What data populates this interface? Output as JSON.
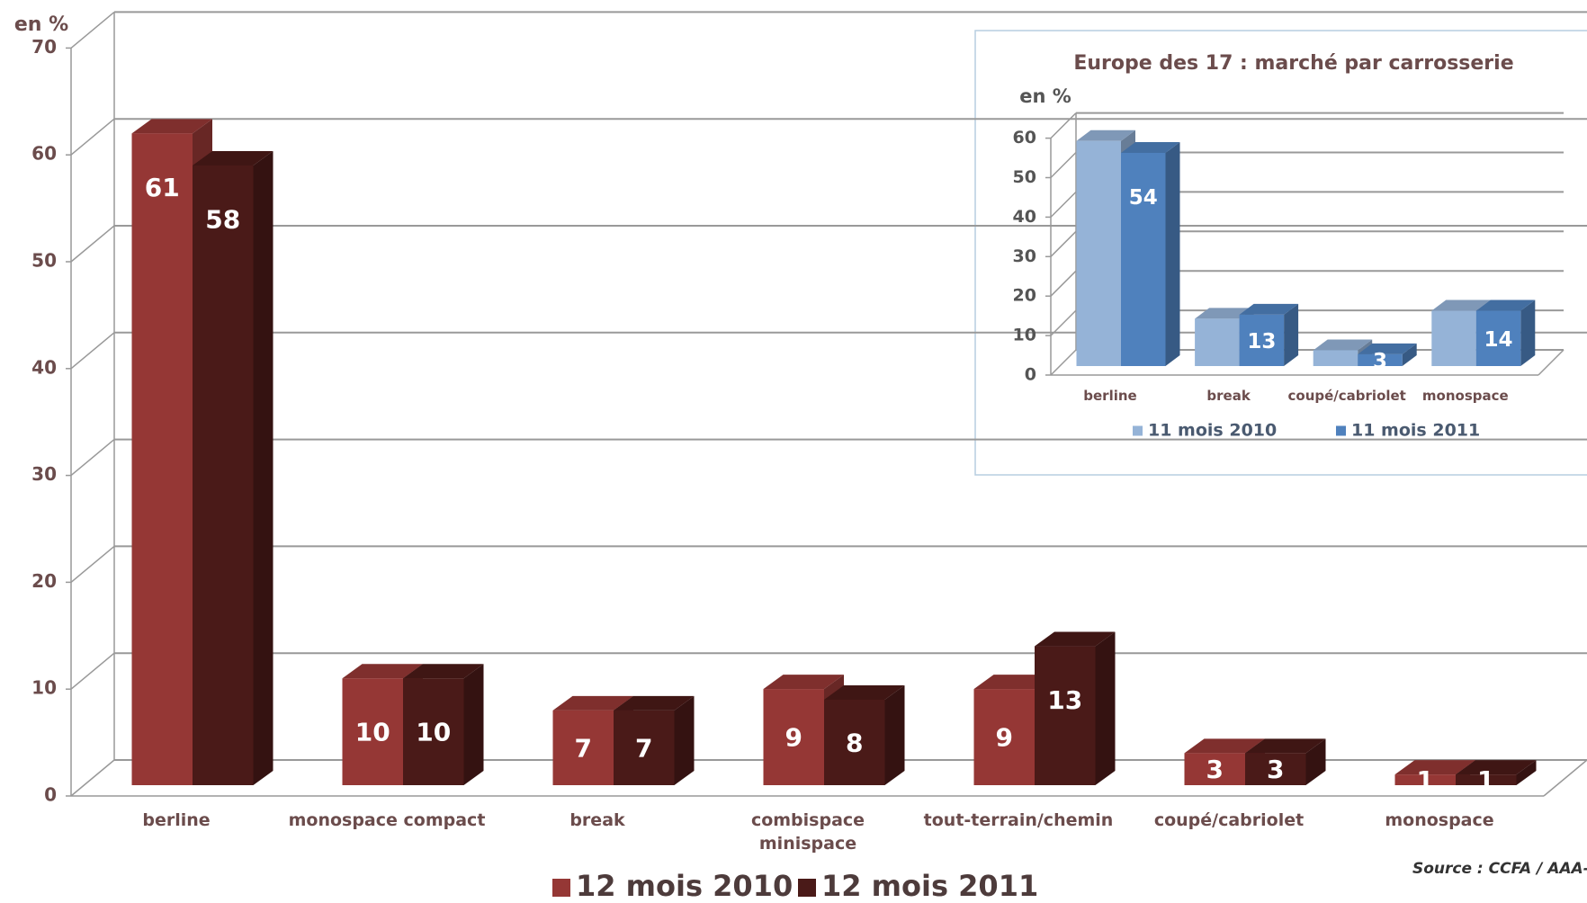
{
  "chart_data": [
    {
      "type": "bar3d",
      "y_label": "en %",
      "categories": [
        "berline",
        "monospace  compact",
        "break",
        "combispace\nminispace",
        "tout-terrain/chemin",
        "coupé/cabriolet",
        "monospace"
      ],
      "series": [
        {
          "name": "12 mois 2010",
          "color": "#953735",
          "values": [
            61,
            10,
            7,
            9,
            9,
            3,
            1
          ],
          "show_labels": true
        },
        {
          "name": "12 mois 2011",
          "color": "#4a1a18",
          "values": [
            58,
            10,
            7,
            8,
            13,
            3,
            1
          ],
          "show_labels": true
        }
      ],
      "ylim": [
        0,
        70
      ],
      "yticks": [
        0,
        10,
        20,
        30,
        40,
        50,
        60,
        70
      ],
      "grid": true,
      "legend": "bottom",
      "source": "Source : CCFA / AAA-D"
    },
    {
      "type": "bar3d",
      "title": "Europe des 17 : marché par carrosserie",
      "y_label": "en %",
      "categories": [
        "berline",
        "break",
        "coupé/cabriolet",
        "monospace"
      ],
      "series": [
        {
          "name": "11 mois 2010",
          "color": "#95b3d7",
          "values": [
            57,
            12,
            4,
            14
          ],
          "show_labels": false
        },
        {
          "name": "11 mois 2011",
          "color": "#4f81bd",
          "values": [
            54,
            13,
            3,
            14
          ],
          "show_labels": true
        }
      ],
      "ylim": [
        0,
        60
      ],
      "yticks": [
        0,
        10,
        20,
        30,
        40,
        50,
        60
      ],
      "grid": true,
      "legend": "bottom"
    }
  ]
}
